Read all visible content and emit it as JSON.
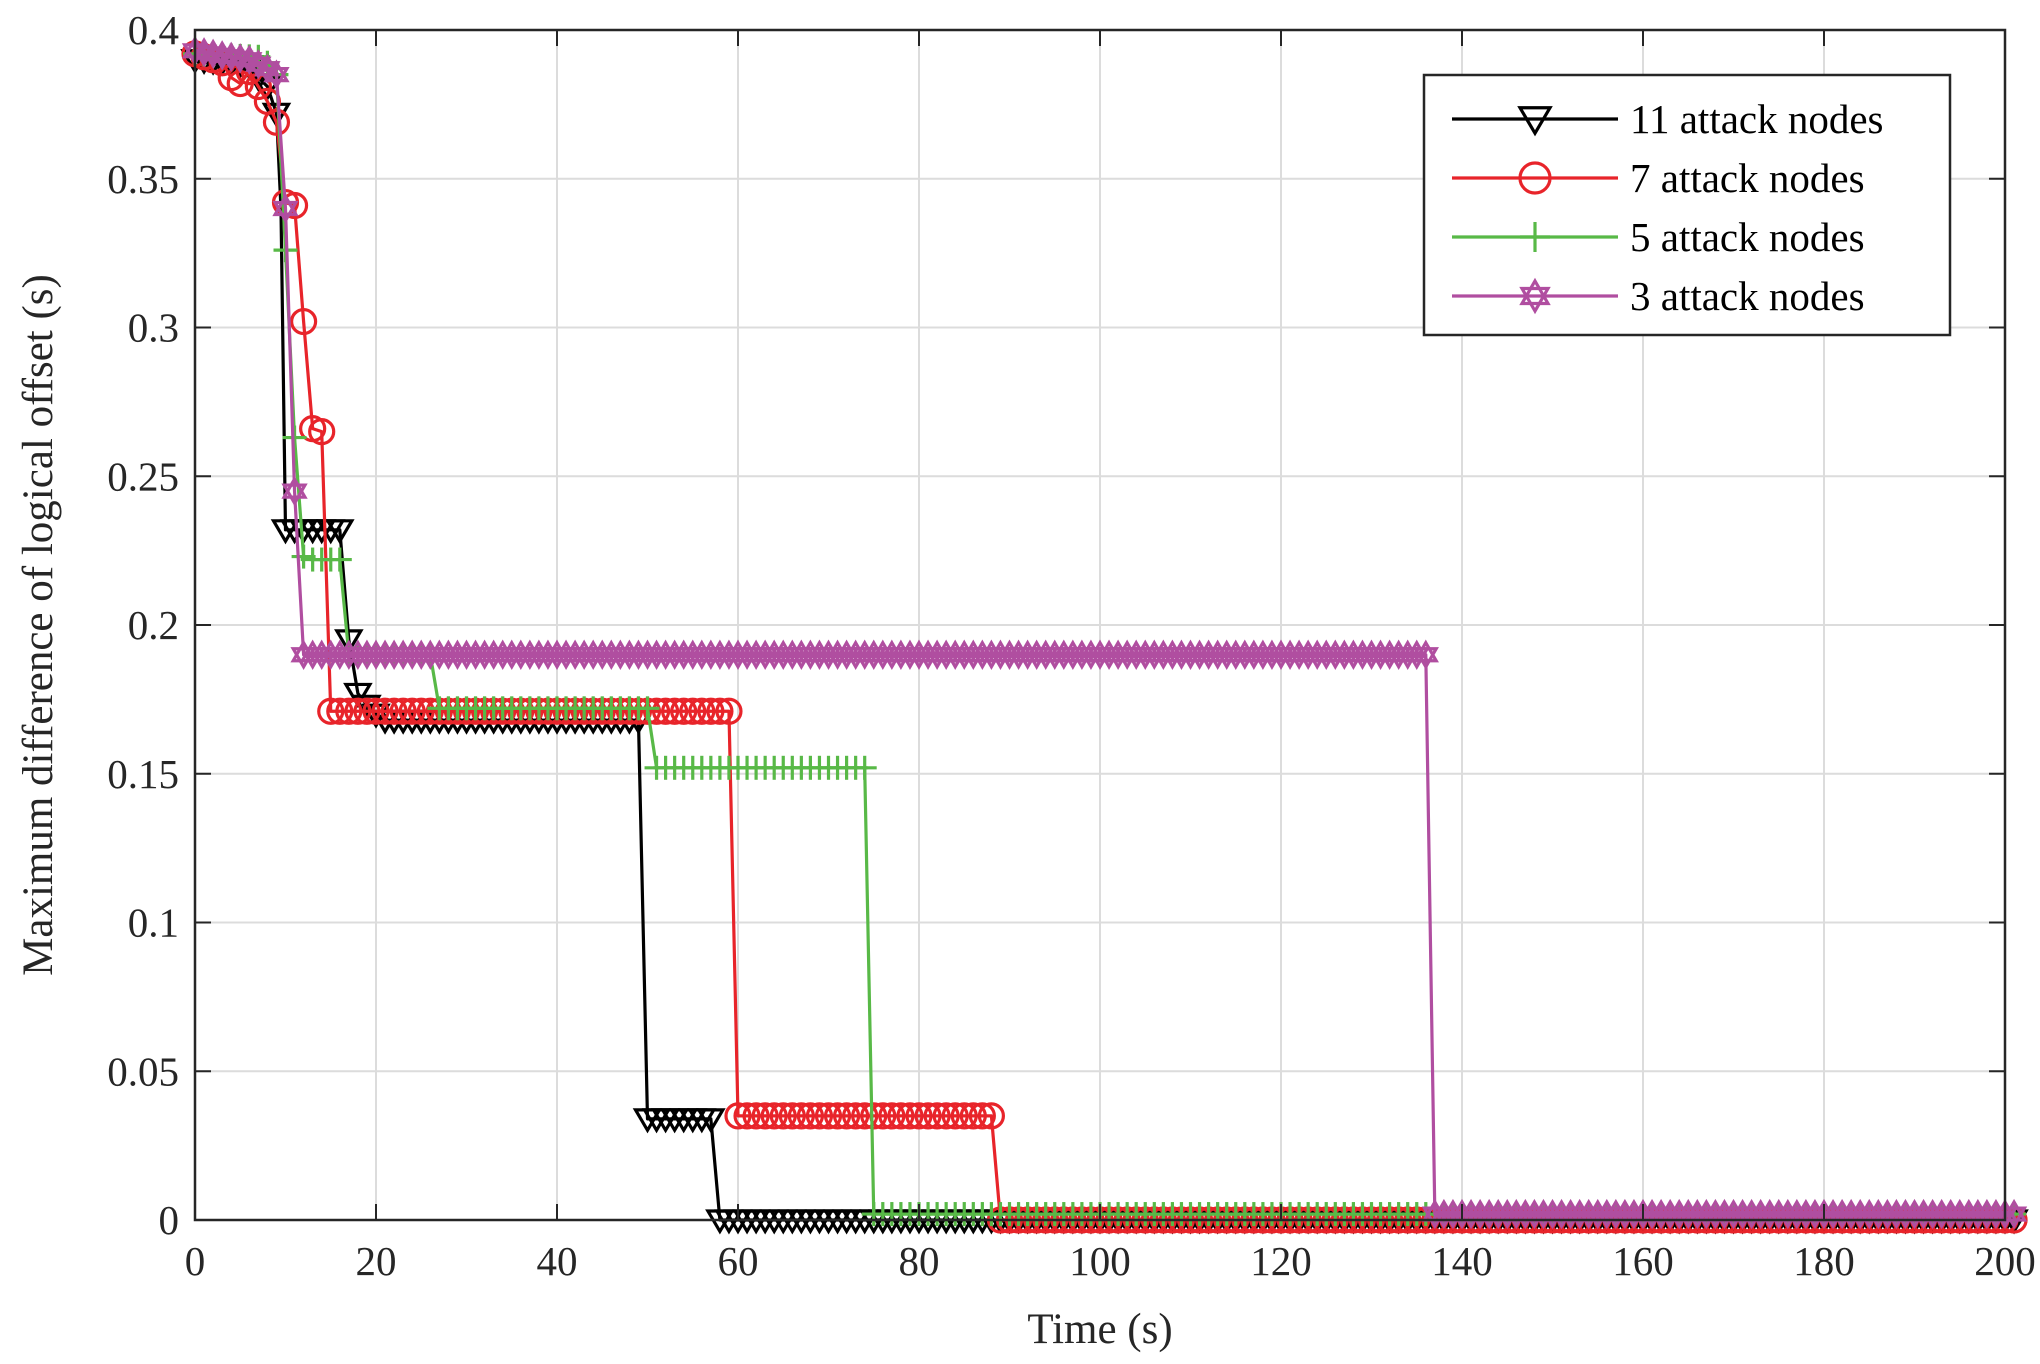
{
  "chart_data": {
    "type": "line",
    "title": "",
    "xlabel": "Time (s)",
    "ylabel": "Maximum difference of logical offset (s)",
    "xlim": [
      0,
      200
    ],
    "ylim": [
      0,
      0.4
    ],
    "xticks": [
      0,
      20,
      40,
      60,
      80,
      100,
      120,
      140,
      160,
      180,
      200
    ],
    "yticks": [
      0,
      0.05,
      0.1,
      0.15,
      0.2,
      0.25,
      0.3,
      0.35,
      0.4
    ],
    "ytick_labels": [
      "0",
      "0.05",
      "0.1",
      "0.15",
      "0.2",
      "0.25",
      "0.3",
      "0.35",
      "0.4"
    ],
    "grid": true,
    "legend_position": "top-right",
    "series": [
      {
        "name": "11 attack nodes",
        "color": "#000000",
        "marker": "triangle-down",
        "x": [
          0,
          4,
          6,
          7,
          8,
          9,
          9.5,
          10,
          16,
          17,
          18,
          19,
          20,
          21,
          49,
          50,
          57,
          58,
          201
        ],
        "y": [
          0.39,
          0.389,
          0.388,
          0.384,
          0.381,
          0.372,
          0.34,
          0.232,
          0.232,
          0.195,
          0.177,
          0.173,
          0.17,
          0.168,
          0.168,
          0.034,
          0.034,
          0.0,
          0.0
        ]
      },
      {
        "name": "7 attack nodes",
        "color": "#e8242a",
        "marker": "circle",
        "x": [
          0,
          3,
          4,
          5,
          6,
          7,
          8,
          9,
          10,
          11,
          12,
          13,
          14,
          15,
          16,
          59,
          60,
          88,
          89,
          201
        ],
        "y": [
          0.392,
          0.389,
          0.384,
          0.382,
          0.386,
          0.381,
          0.376,
          0.369,
          0.342,
          0.341,
          0.302,
          0.266,
          0.265,
          0.171,
          0.171,
          0.171,
          0.035,
          0.035,
          0.0,
          0.0
        ]
      },
      {
        "name": "5 attack nodes",
        "color": "#58b947",
        "marker": "plus",
        "x": [
          0,
          7,
          8,
          9,
          10,
          11,
          12,
          13,
          16,
          17,
          18,
          26,
          27,
          50,
          51,
          74,
          75,
          201
        ],
        "y": [
          0.392,
          0.391,
          0.389,
          0.385,
          0.326,
          0.263,
          0.223,
          0.222,
          0.222,
          0.19,
          0.19,
          0.19,
          0.172,
          0.172,
          0.152,
          0.152,
          0.002,
          0.002
        ]
      },
      {
        "name": "3 attack nodes",
        "color": "#b04ea0",
        "marker": "hexagram",
        "x": [
          0,
          6,
          8,
          9,
          10,
          11,
          12,
          136,
          137,
          201
        ],
        "y": [
          0.393,
          0.39,
          0.387,
          0.385,
          0.34,
          0.245,
          0.19,
          0.19,
          0.002,
          0.002
        ]
      }
    ]
  }
}
